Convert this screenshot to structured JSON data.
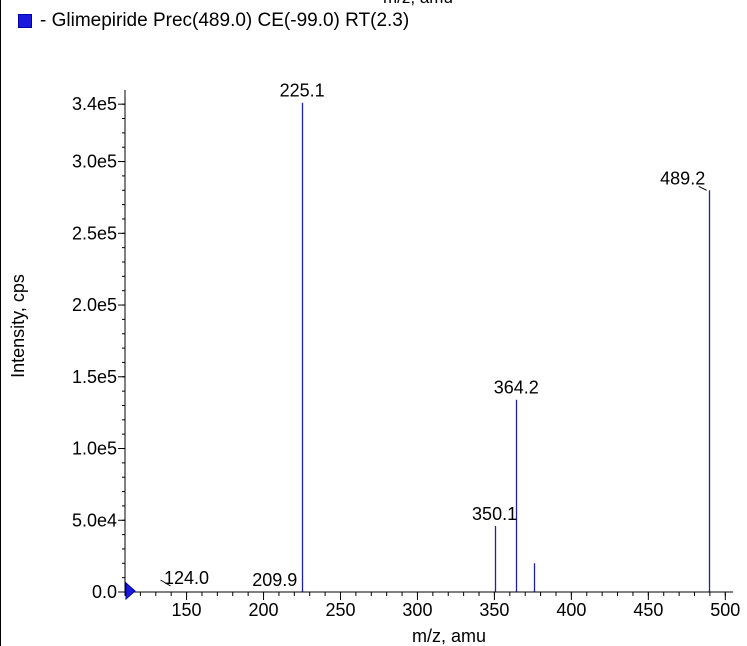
{
  "top_cut_label": "m/z, amu",
  "legend": {
    "label": "- Glimepiride Prec(489.0) CE(-99.0) RT(2.3)",
    "color": "#1a1adf"
  },
  "chart_data": {
    "type": "bar",
    "xlabel": "m/z, amu",
    "ylabel": "Intensity, cps",
    "xlim": [
      110,
      505
    ],
    "ylim": [
      0,
      345000
    ],
    "x_ticks": [
      150,
      200,
      250,
      300,
      350,
      400,
      450,
      500
    ],
    "x_tick_labels": [
      "150",
      "200",
      "250",
      "300",
      "350",
      "400",
      "450",
      "500"
    ],
    "y_ticks": [
      0,
      50000,
      100000,
      150000,
      200000,
      250000,
      300000,
      340000
    ],
    "y_tick_labels": [
      "0.0",
      "5.0e4",
      "1.0e5",
      "1.5e5",
      "2.0e5",
      "2.5e5",
      "3.0e5",
      "3.4e5"
    ],
    "peak_color": "#2020a8",
    "series": [
      {
        "name": "Glimepiride Prec(489.0) CE(-99.0) RT(2.3)",
        "peaks": [
          {
            "mz": 124.0,
            "intensity": 300,
            "label": "124.0"
          },
          {
            "mz": 209.9,
            "intensity": 300,
            "label": "209.9"
          },
          {
            "mz": 225.1,
            "intensity": 341000,
            "label": "225.1"
          },
          {
            "mz": 350.1,
            "intensity": 46000,
            "label": "350.1"
          },
          {
            "mz": 364.2,
            "intensity": 134000,
            "label": "364.2"
          },
          {
            "mz": 376.0,
            "intensity": 20000,
            "label": ""
          },
          {
            "mz": 489.2,
            "intensity": 280000,
            "label": "489.2"
          }
        ]
      }
    ]
  }
}
